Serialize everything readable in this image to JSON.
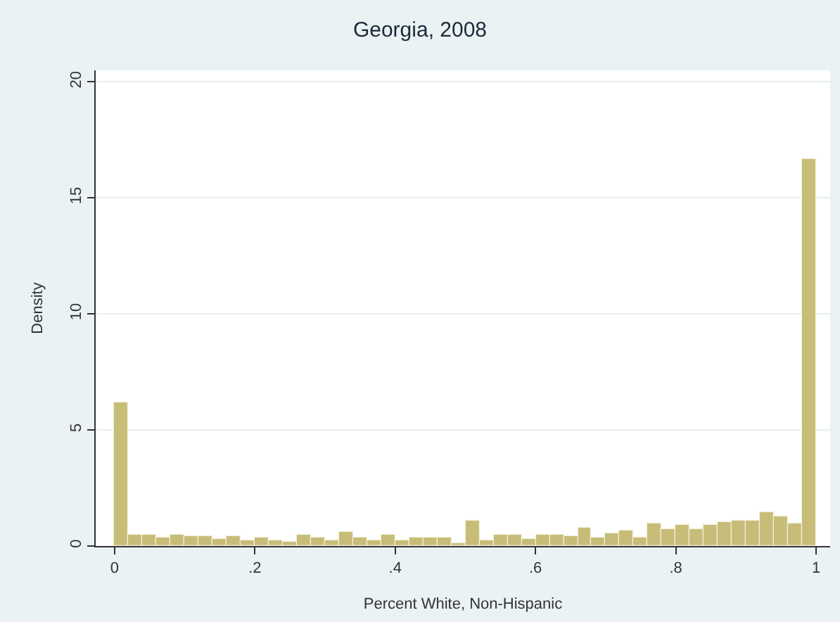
{
  "chart_data": {
    "type": "histogram",
    "title": "Georgia, 2008",
    "xlabel": "Percent White, Non-Hispanic",
    "ylabel": "Density",
    "bins": [
      0,
      0.02,
      0.04,
      0.06,
      0.08,
      0.1,
      0.12,
      0.14,
      0.16,
      0.18,
      0.2,
      0.22,
      0.24,
      0.26,
      0.28,
      0.3,
      0.32,
      0.34,
      0.36,
      0.38,
      0.4,
      0.42,
      0.44,
      0.46,
      0.48,
      0.5,
      0.52,
      0.54,
      0.56,
      0.58,
      0.6,
      0.62,
      0.64,
      0.66,
      0.68,
      0.7,
      0.72,
      0.74,
      0.76,
      0.78,
      0.8,
      0.82,
      0.84,
      0.86,
      0.88,
      0.9,
      0.92,
      0.94,
      0.96,
      0.98,
      1
    ],
    "values": [
      6.2,
      0.46,
      0.46,
      0.36,
      0.5,
      0.4,
      0.4,
      0.3,
      0.4,
      0.25,
      0.36,
      0.26,
      0.16,
      0.48,
      0.36,
      0.26,
      0.6,
      0.36,
      0.26,
      0.48,
      0.26,
      0.36,
      0.36,
      0.36,
      0.15,
      1.1,
      0.26,
      0.46,
      0.46,
      0.28,
      0.5,
      0.5,
      0.4,
      0.8,
      0.34,
      0.54,
      0.67,
      0.36,
      0.98,
      0.73,
      0.9,
      0.75,
      0.9,
      1.05,
      1.1,
      1.1,
      1.45,
      1.3,
      1.0,
      16.7
    ],
    "color": "#c8bd78",
    "xlim": [
      -0.027,
      1.02
    ],
    "ylim": [
      0,
      20.5
    ],
    "xticks": [
      0,
      {
        "value": 0.2,
        "label": ".2"
      },
      {
        "value": 0.4,
        "label": ".4"
      },
      {
        "value": 0.6,
        "label": ".6"
      },
      {
        "value": 0.8,
        "label": ".8"
      },
      1
    ],
    "yticks": [
      0,
      5,
      10,
      15,
      20
    ],
    "grid": "y"
  }
}
